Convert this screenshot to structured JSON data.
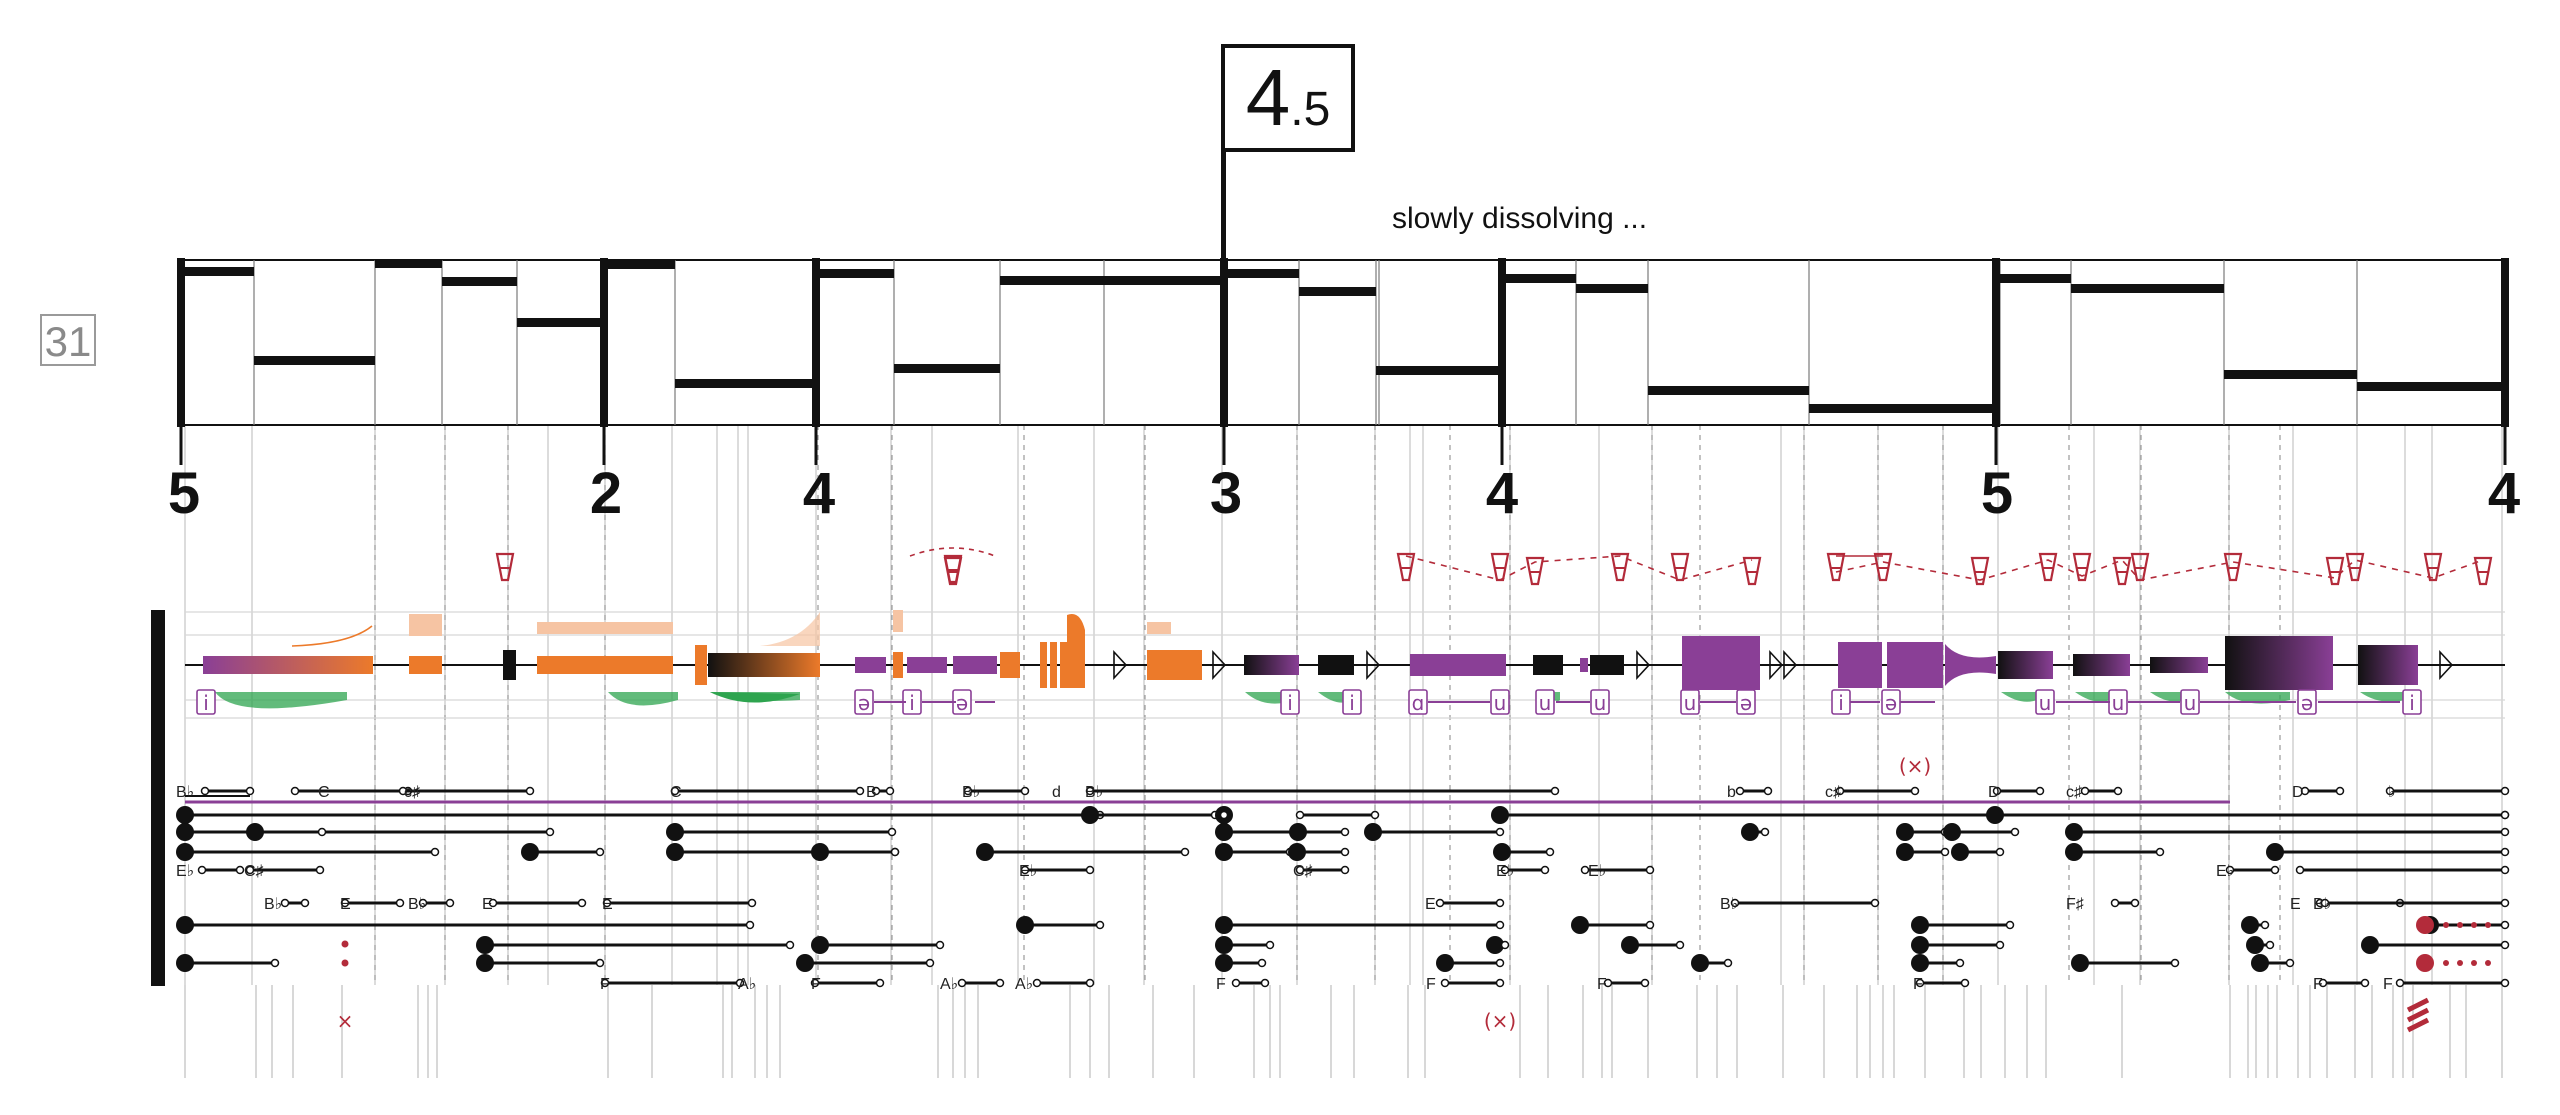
{
  "page_number": "31",
  "rehearsal": {
    "main": "4",
    "sub": ".5"
  },
  "expression_text": "slowly dissolving ...",
  "tempo_numbers": [
    "5",
    "2",
    "4",
    "3",
    "4",
    "5",
    "4"
  ],
  "colors": {
    "ink": "#111111",
    "grid": "#bdbdbd",
    "orange": "#ec7a2a",
    "orange_light": "#f6c4a3",
    "purple": "#8a3f96",
    "green": "#2ea44f",
    "red": "#b32b3a"
  },
  "note_names": [
    "B♭",
    "C",
    "c♯",
    "C",
    "B",
    "B♭",
    "d",
    "B♭",
    "b",
    "c♯",
    "D",
    "c♯",
    "D",
    "♭",
    "E♭",
    "C♯",
    "E♭",
    "C♯",
    "E♭",
    "E♭",
    "E♭",
    "B♭",
    "E",
    "B♭",
    "E",
    "E",
    "E",
    "B♭",
    "F♯",
    "E",
    "B♭",
    "F",
    "A♭",
    "F",
    "A♭",
    "A♭",
    "F",
    "F",
    "F",
    "F",
    "F",
    "F"
  ],
  "syllables": [
    "i",
    "ə",
    "i",
    "ə",
    "i",
    "i",
    "ɑ",
    "u",
    "u",
    "u",
    "u",
    "ə",
    "i",
    "ə",
    "u",
    "u",
    "u",
    "ə",
    "i"
  ],
  "marks": {
    "cross": "×",
    "paren_cross": "(×)"
  }
}
